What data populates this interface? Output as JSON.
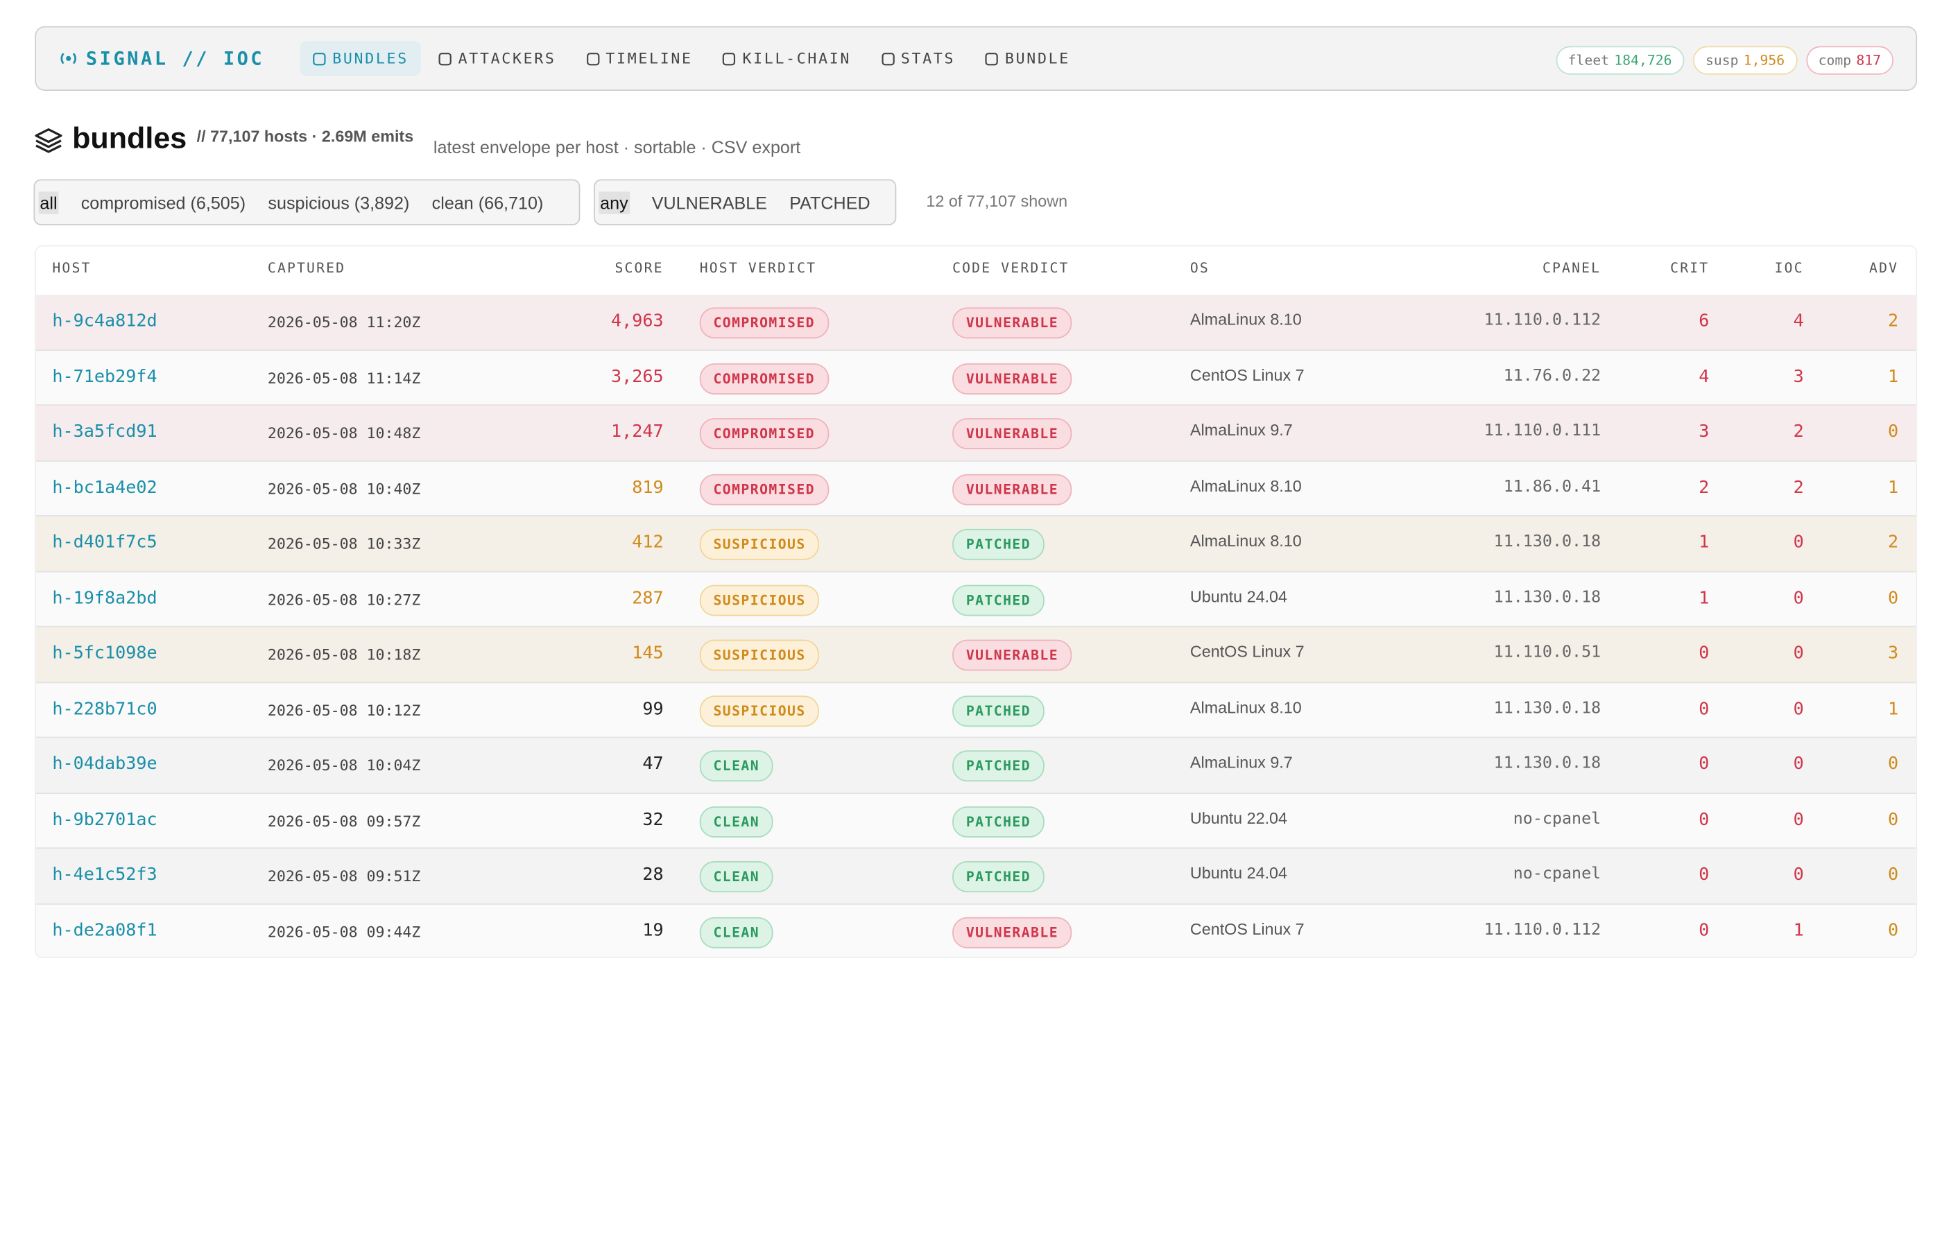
{
  "nav": {
    "brand": "SIGNAL // IOC",
    "items": [
      "BUNDLES",
      "ATTACKERS",
      "TIMELINE",
      "KILL-CHAIN",
      "STATS",
      "BUNDLE"
    ],
    "pills": [
      {
        "label": "fleet",
        "value": "184,726"
      },
      {
        "label": "susp",
        "value": "1,956"
      },
      {
        "label": "comp",
        "value": "817"
      }
    ]
  },
  "heading": {
    "title": "bundles",
    "meta": "// 77,107 hosts · 2.69M emits",
    "description": "latest envelope per host · sortable · CSV export"
  },
  "filters": {
    "verdict": [
      "all",
      "compromised (6,505)",
      "suspicious (3,892)",
      "clean (66,710)"
    ],
    "code": [
      "any",
      "VULNERABLE",
      "PATCHED"
    ],
    "shown": "12 of 77,107 shown"
  },
  "table": {
    "headers": [
      "HOST",
      "CAPTURED",
      "SCORE",
      "HOST VERDICT",
      "CODE VERDICT",
      "OS",
      "CPANEL",
      "CRIT",
      "IOC",
      "ADV"
    ],
    "rows": [
      [
        "h-9c4a812d",
        "2026-05-08 11:20Z",
        "4,963",
        "COMPROMISED",
        "VULNERABLE",
        "AlmaLinux 8.10",
        "11.110.0.112",
        6,
        4,
        2
      ],
      [
        "h-71eb29f4",
        "2026-05-08 11:14Z",
        "3,265",
        "COMPROMISED",
        "VULNERABLE",
        "CentOS Linux 7",
        "11.76.0.22",
        4,
        3,
        1
      ],
      [
        "h-3a5fcd91",
        "2026-05-08 10:48Z",
        "1,247",
        "COMPROMISED",
        "VULNERABLE",
        "AlmaLinux 9.7",
        "11.110.0.111",
        3,
        2,
        0
      ],
      [
        "h-bc1a4e02",
        "2026-05-08 10:40Z",
        "819",
        "COMPROMISED",
        "VULNERABLE",
        "AlmaLinux 8.10",
        "11.86.0.41",
        2,
        2,
        1
      ],
      [
        "h-d401f7c5",
        "2026-05-08 10:33Z",
        "412",
        "SUSPICIOUS",
        "PATCHED",
        "AlmaLinux 8.10",
        "11.130.0.18",
        1,
        0,
        2
      ],
      [
        "h-19f8a2bd",
        "2026-05-08 10:27Z",
        "287",
        "SUSPICIOUS",
        "PATCHED",
        "Ubuntu 24.04",
        "11.130.0.18",
        1,
        0,
        0
      ],
      [
        "h-5fc1098e",
        "2026-05-08 10:18Z",
        "145",
        "SUSPICIOUS",
        "VULNERABLE",
        "CentOS Linux 7",
        "11.110.0.51",
        0,
        0,
        3
      ],
      [
        "h-228b71c0",
        "2026-05-08 10:12Z",
        "99",
        "SUSPICIOUS",
        "PATCHED",
        "AlmaLinux 8.10",
        "11.130.0.18",
        0,
        0,
        1
      ],
      [
        "h-04dab39e",
        "2026-05-08 10:04Z",
        "47",
        "CLEAN",
        "PATCHED",
        "AlmaLinux 9.7",
        "11.130.0.18",
        0,
        0,
        0
      ],
      [
        "h-9b2701ac",
        "2026-05-08 09:57Z",
        "32",
        "CLEAN",
        "PATCHED",
        "Ubuntu 22.04",
        "no-cpanel",
        0,
        0,
        0
      ],
      [
        "h-4e1c52f3",
        "2026-05-08 09:51Z",
        "28",
        "CLEAN",
        "PATCHED",
        "Ubuntu 24.04",
        "no-cpanel",
        0,
        0,
        0
      ],
      [
        "h-de2a08f1",
        "2026-05-08 09:44Z",
        "19",
        "CLEAN",
        "VULNERABLE",
        "CentOS Linux 7",
        "11.110.0.112",
        0,
        1,
        0
      ]
    ]
  }
}
